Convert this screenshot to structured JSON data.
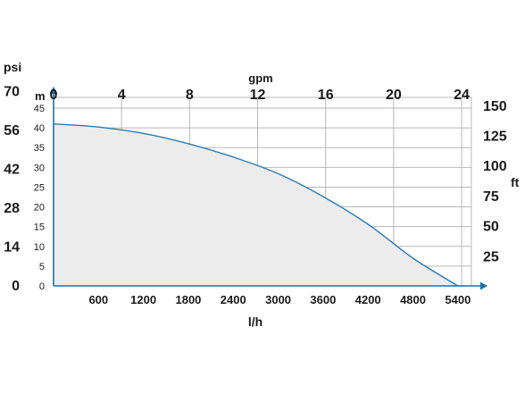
{
  "chart_data": {
    "type": "area",
    "title": "",
    "x": [
      0,
      600,
      1200,
      1800,
      2400,
      3000,
      3600,
      4200,
      4800,
      5400
    ],
    "series": [
      {
        "values": [
          41,
          40.2,
          38.6,
          36,
          32.6,
          28.4,
          22.6,
          15.6,
          7,
          0
        ]
      }
    ],
    "x_axis_bottom": {
      "label": "l/h",
      "ticks": [
        "600",
        "1200",
        "1800",
        "2400",
        "3000",
        "3600",
        "4200",
        "4800",
        "5400"
      ],
      "range": [
        0,
        5700
      ]
    },
    "x_axis_top": {
      "label": "gpm",
      "ticks": [
        "0",
        "4",
        "8",
        "12",
        "16",
        "20",
        "24"
      ],
      "range": [
        0,
        25.1
      ]
    },
    "y_axis_m": {
      "label": "m",
      "ticks": [
        "0",
        "5",
        "10",
        "15",
        "20",
        "25",
        "30",
        "35",
        "40",
        "45"
      ],
      "range": [
        0,
        45
      ]
    },
    "y_axis_psi": {
      "label": "psi",
      "ticks": [
        "0",
        "14",
        "28",
        "42",
        "56",
        "70"
      ],
      "range": [
        0,
        70
      ]
    },
    "y_axis_ft": {
      "label": "ft",
      "ticks": [
        "25",
        "50",
        "75",
        "100",
        "125",
        "150"
      ],
      "range": [
        0,
        150
      ]
    },
    "grid": true,
    "colors": {
      "axis": "#1f6ea8",
      "curve": "#2b7bb5",
      "fill": "#ececec",
      "grid": "#b8b8b8"
    }
  }
}
